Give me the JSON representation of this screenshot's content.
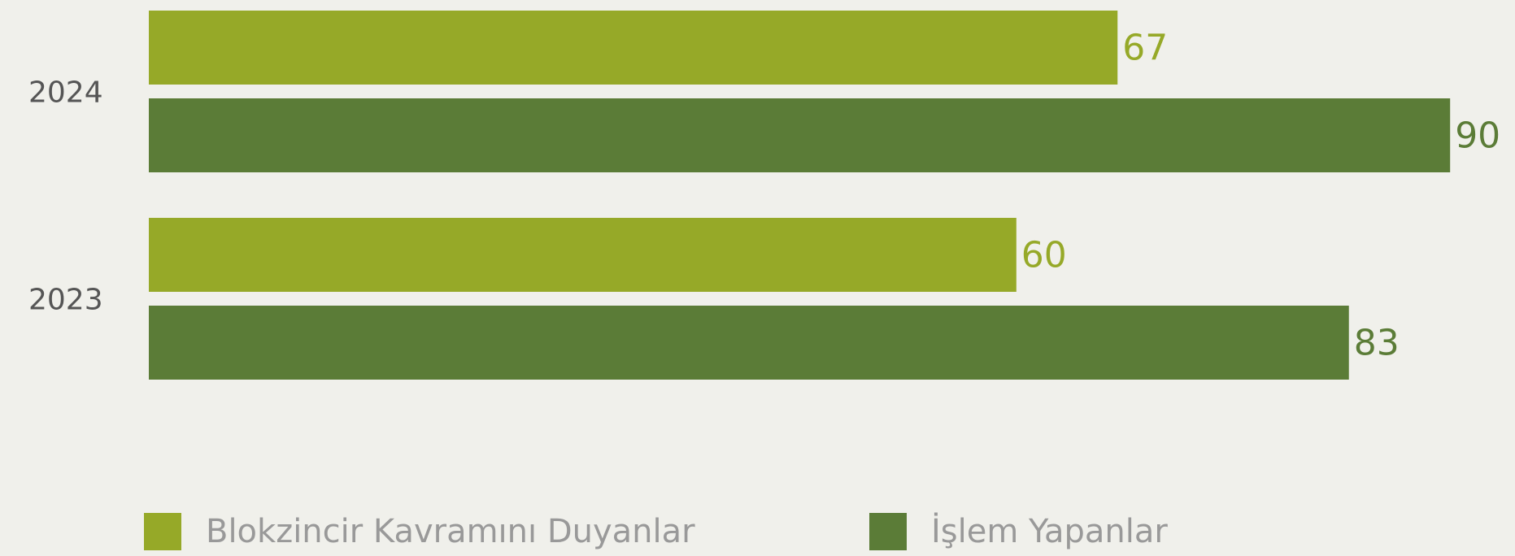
{
  "chart_data": {
    "type": "hbar",
    "categories": [
      "2024",
      "2023"
    ],
    "series": [
      {
        "name": "Blokzincir Kavramını Duyanlar",
        "color": "#96a928",
        "values": [
          67,
          60
        ]
      },
      {
        "name": "İşlem Yapanlar",
        "color": "#5b7c37",
        "values": [
          90,
          83
        ]
      }
    ],
    "xlim": [
      0,
      100
    ]
  }
}
